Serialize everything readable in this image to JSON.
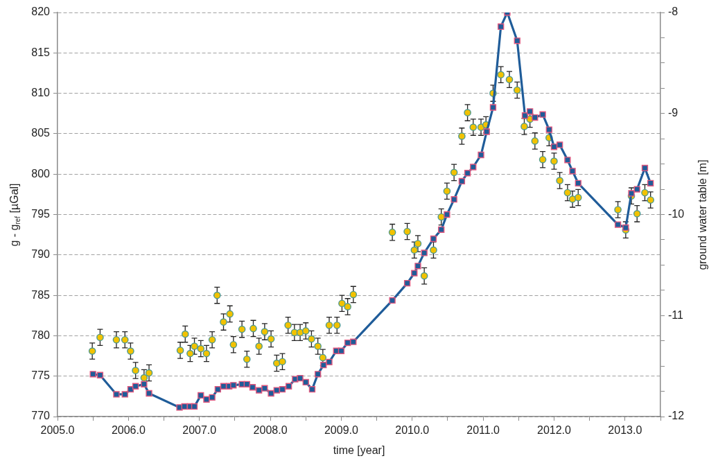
{
  "chart_data": {
    "type": "scatter",
    "xlabel": "time [year]",
    "ylabel": "g - g$_{ref}$ [µGal]",
    "y2label": "ground water table [m]",
    "xlim": [
      2005,
      2013.5
    ],
    "xticks": [
      {
        "value": 2005,
        "label": "2005.0"
      },
      {
        "value": 2005.5,
        "label": null
      },
      {
        "value": 2006,
        "label": "2006.0"
      },
      {
        "value": 2006.5,
        "label": null
      },
      {
        "value": 2007,
        "label": "2007.0"
      },
      {
        "value": 2007.5,
        "label": null
      },
      {
        "value": 2008,
        "label": "2008.0"
      },
      {
        "value": 2008.5,
        "label": null
      },
      {
        "value": 2009,
        "label": "2009.0"
      },
      {
        "value": 2009.5,
        "label": null
      },
      {
        "value": 2010,
        "label": "2010.0"
      },
      {
        "value": 2010.5,
        "label": null
      },
      {
        "value": 2011,
        "label": "2011.0"
      },
      {
        "value": 2011.5,
        "label": null
      },
      {
        "value": 2012,
        "label": "2012.0"
      },
      {
        "value": 2012.5,
        "label": null
      },
      {
        "value": 2013,
        "label": "2013.0"
      },
      {
        "value": 2013.5,
        "label": null
      }
    ],
    "ylim": [
      770,
      820
    ],
    "yticks": [
      770,
      775,
      780,
      785,
      790,
      795,
      800,
      805,
      810,
      815,
      820
    ],
    "y2lim": [
      -12,
      -8
    ],
    "y2ticks": [
      -12,
      {
        "value": -11.75,
        "label": null
      },
      {
        "value": -11.5,
        "label": null
      },
      {
        "value": -11.25,
        "label": null
      },
      -11,
      {
        "value": -10.75,
        "label": null
      },
      {
        "value": -10.5,
        "label": null
      },
      {
        "value": -10.25,
        "label": null
      },
      -10,
      {
        "value": -9.75,
        "label": null
      },
      {
        "value": -9.5,
        "label": null
      },
      {
        "value": -9.25,
        "label": null
      },
      -9,
      {
        "value": -8.75,
        "label": null
      },
      {
        "value": -8.5,
        "label": null
      },
      {
        "value": -8.25,
        "label": null
      },
      -8
    ],
    "grid": "y",
    "series": [
      {
        "type": "scatter",
        "color": "#f2c200",
        "marker": "circle",
        "x": [
          2005.49,
          2005.6,
          2005.83,
          2005.95,
          2006.03,
          2006.1,
          2006.22,
          2006.29,
          2006.73,
          2006.8,
          2006.87,
          2006.93,
          2007.02,
          2007.1,
          2007.18,
          2007.25,
          2007.34,
          2007.43,
          2007.48,
          2007.6,
          2007.67,
          2007.76,
          2007.84,
          2007.92,
          2008.01,
          2008.09,
          2008.17,
          2008.25,
          2008.34,
          2008.42,
          2008.5,
          2008.58,
          2008.67,
          2008.74,
          2008.83,
          2008.94,
          2009.01,
          2009.09,
          2009.17,
          2009.72,
          2009.93,
          2010.03,
          2010.08,
          2010.17,
          2010.3,
          2010.41,
          2010.49,
          2010.59,
          2010.7,
          2010.78,
          2010.86,
          2010.97,
          2011.04,
          2011.14,
          2011.25,
          2011.37,
          2011.48,
          2011.58,
          2011.66,
          2011.73,
          2011.84,
          2011.93,
          2012,
          2012.08,
          2012.19,
          2012.26,
          2012.34,
          2012.9,
          2013.01,
          2013.09,
          2013.17,
          2013.28,
          2013.36
        ],
        "values": [
          778.1,
          779.8,
          779.5,
          779.5,
          778.1,
          775.7,
          774.8,
          775.4,
          778.2,
          780.2,
          777.8,
          778.7,
          778.4,
          777.8,
          779.5,
          785.0,
          781.7,
          782.7,
          778.9,
          780.8,
          777.1,
          780.9,
          778.7,
          780.5,
          779.6,
          776.6,
          776.8,
          781.3,
          780.4,
          780.4,
          780.6,
          779.6,
          778.7,
          777.3,
          781.3,
          781.3,
          784.0,
          783.6,
          785.1,
          792.8,
          792.9,
          790.6,
          791.4,
          787.4,
          790.6,
          794.7,
          797.9,
          800.2,
          804.7,
          807.6,
          805.8,
          805.8,
          806.1,
          810.0,
          812.3,
          811.7,
          810.4,
          805.9,
          806.8,
          804.1,
          801.8,
          804.5,
          801.6,
          799.2,
          797.7,
          796.9,
          797.1,
          795.6,
          793.1,
          797.3,
          795.1,
          797.7,
          796.8
        ],
        "errors": [
          1,
          1,
          1,
          1,
          1,
          1,
          1,
          1,
          1,
          1,
          1,
          1,
          1,
          1,
          1,
          1,
          1,
          1,
          1,
          1,
          1,
          1,
          1,
          1,
          1,
          1,
          1,
          1,
          1,
          1,
          1,
          1,
          1,
          1,
          1,
          1,
          1,
          1,
          1,
          1,
          1,
          1,
          1,
          1,
          1,
          1,
          1,
          1,
          1,
          1,
          1,
          1,
          1,
          1,
          1,
          1,
          1,
          1,
          1,
          1,
          1,
          1,
          1,
          1,
          1,
          1,
          1,
          1,
          1,
          1,
          1,
          1,
          1
        ]
      },
      {
        "type": "line",
        "axis": "y2",
        "color": "#1f5c99",
        "marker": "square",
        "x": [
          2005.5,
          2005.6,
          2005.83,
          2005.95,
          2006.03,
          2006.1,
          2006.22,
          2006.29,
          2006.72,
          2006.79,
          2006.87,
          2006.93,
          2007.02,
          2007.1,
          2007.18,
          2007.26,
          2007.34,
          2007.42,
          2007.48,
          2007.6,
          2007.67,
          2007.75,
          2007.84,
          2007.92,
          2008.01,
          2008.09,
          2008.17,
          2008.26,
          2008.35,
          2008.42,
          2008.5,
          2008.59,
          2008.67,
          2008.75,
          2008.83,
          2008.93,
          2009,
          2009.09,
          2009.17,
          2009.72,
          2009.93,
          2010.03,
          2010.08,
          2010.17,
          2010.3,
          2010.41,
          2010.49,
          2010.59,
          2010.7,
          2010.78,
          2010.86,
          2010.97,
          2011.05,
          2011.14,
          2011.25,
          2011.34,
          2011.48,
          2011.59,
          2011.66,
          2011.73,
          2011.84,
          2011.93,
          2012,
          2012.08,
          2012.19,
          2012.26,
          2012.34,
          2012.9,
          2013.01,
          2013.09,
          2013.17,
          2013.28,
          2013.36
        ],
        "values": [
          -11.58,
          -11.59,
          -11.78,
          -11.78,
          -11.73,
          -11.7,
          -11.68,
          -11.77,
          -11.91,
          -11.9,
          -11.9,
          -11.9,
          -11.79,
          -11.83,
          -11.81,
          -11.73,
          -11.7,
          -11.7,
          -11.69,
          -11.68,
          -11.68,
          -11.71,
          -11.74,
          -11.72,
          -11.77,
          -11.74,
          -11.73,
          -11.7,
          -11.63,
          -11.62,
          -11.66,
          -11.73,
          -11.58,
          -11.49,
          -11.46,
          -11.35,
          -11.35,
          -11.27,
          -11.26,
          -10.85,
          -10.68,
          -10.58,
          -10.51,
          -10.38,
          -10.24,
          -10.15,
          -10.0,
          -9.85,
          -9.67,
          -9.59,
          -9.53,
          -9.41,
          -9.18,
          -8.94,
          -8.14,
          -8.0,
          -8.28,
          -9.02,
          -8.98,
          -9.04,
          -9.01,
          -9.16,
          -9.33,
          -9.31,
          -9.46,
          -9.57,
          -9.69,
          -10.1,
          -10.13,
          -9.79,
          -9.75,
          -9.54,
          -9.69
        ]
      }
    ]
  }
}
